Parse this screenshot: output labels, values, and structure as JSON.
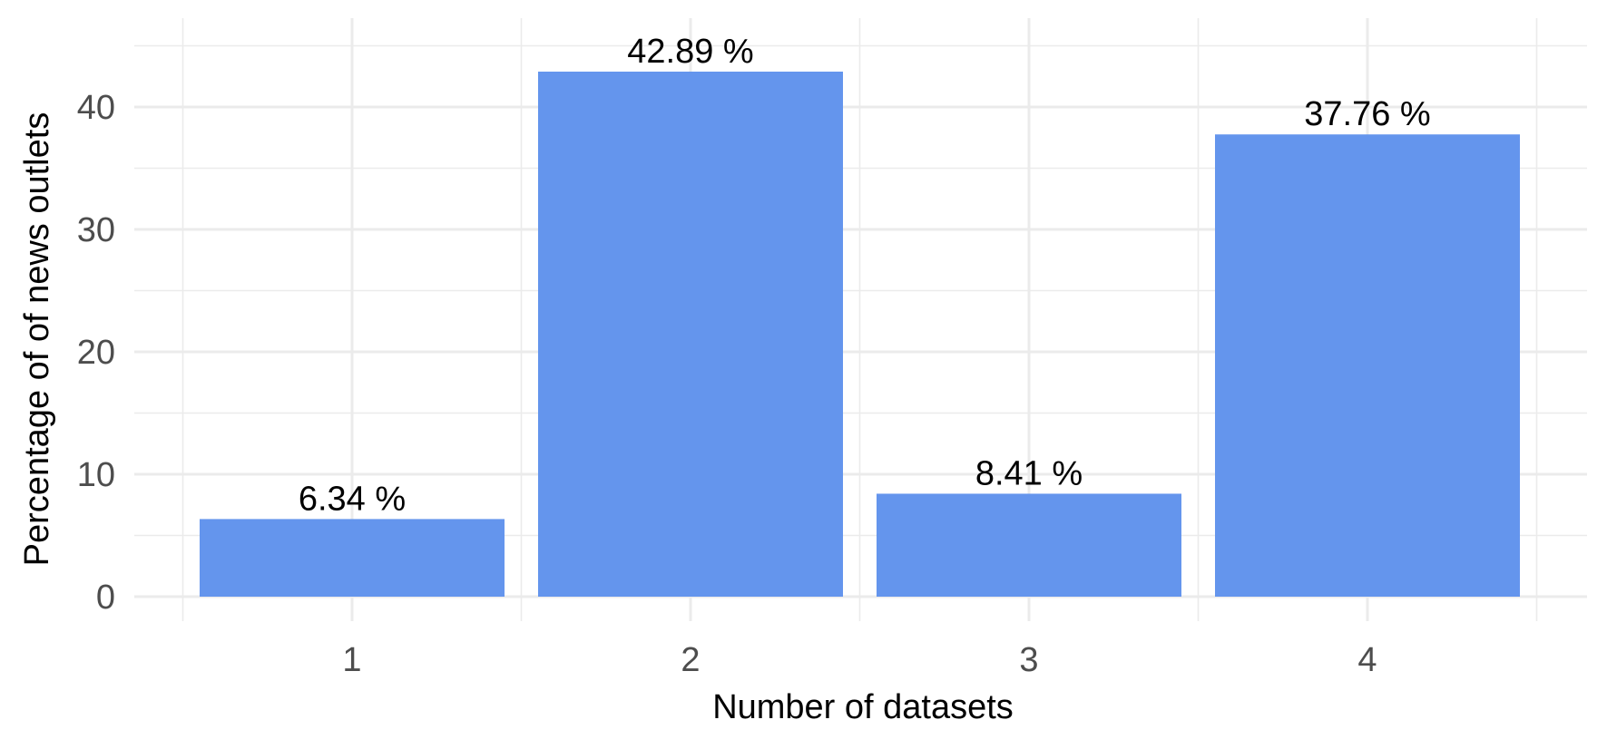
{
  "chart_data": {
    "type": "bar",
    "categories": [
      "1",
      "2",
      "3",
      "4"
    ],
    "values": [
      6.34,
      42.89,
      8.41,
      37.76
    ],
    "data_labels": [
      "6.34 %",
      "42.89 %",
      "8.41 %",
      "37.76 %"
    ],
    "xlabel": "Number of datasets",
    "ylabel": "Percentage of of news outlets",
    "y_ticks": [
      0,
      10,
      20,
      30,
      40
    ],
    "ylim": [
      0,
      45
    ],
    "grid": true,
    "bar_color": "#6495ED",
    "grid_color": "#EBEBEB"
  }
}
